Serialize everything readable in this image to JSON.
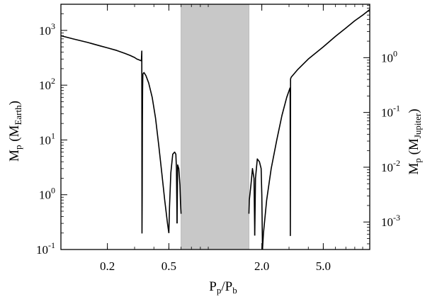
{
  "chart_data": {
    "type": "line",
    "xlabel": {
      "main": "P",
      "sub1": "p",
      "slash": "/P",
      "sub2": "b"
    },
    "ylabel_left": {
      "main": "M",
      "sub": "p",
      "paren_open": " (M",
      "unit_sub": "Earth",
      "paren_close": ")"
    },
    "ylabel_right": {
      "main": "M",
      "sub": "p",
      "paren_open": " (M",
      "unit_sub": "Jupiter",
      "paren_close": ")"
    },
    "x_scale": "log",
    "xlim": [
      0.1,
      10
    ],
    "x_ticks": [
      {
        "value": 0.2,
        "label": "0.2"
      },
      {
        "value": 0.5,
        "label": "0.5"
      },
      {
        "value": 2.0,
        "label": "2.0"
      },
      {
        "value": 5.0,
        "label": "5.0"
      }
    ],
    "y_scale": "log",
    "ylim": [
      0.1,
      3000
    ],
    "y_ticks_left": [
      {
        "value": 0.1,
        "base": "10",
        "exp": "-1"
      },
      {
        "value": 1,
        "base": "10",
        "exp": "0"
      },
      {
        "value": 10,
        "base": "10",
        "exp": "1"
      },
      {
        "value": 100,
        "base": "10",
        "exp": "2"
      },
      {
        "value": 1000,
        "base": "10",
        "exp": "3"
      }
    ],
    "y_ticks_right": [
      {
        "value": 0.001,
        "base": "10",
        "exp": "-3"
      },
      {
        "value": 0.01,
        "base": "10",
        "exp": "-2"
      },
      {
        "value": 0.1,
        "base": "10",
        "exp": "-1"
      },
      {
        "value": 1,
        "base": "10",
        "exp": "0"
      }
    ],
    "earth_per_jupiter": 317.8,
    "shaded_region": {
      "x_start": 0.6,
      "x_end": 1.65,
      "color": "#c8c8c8"
    },
    "line_color": "#000000",
    "series": [
      {
        "x": [
          0.1,
          0.12,
          0.15,
          0.18,
          0.2,
          0.23,
          0.26,
          0.28,
          0.3,
          0.31,
          0.32,
          0.33,
          0.332
        ],
        "y": [
          800,
          700,
          600,
          520,
          480,
          430,
          380,
          350,
          320,
          300,
          290,
          280,
          280
        ]
      },
      {
        "x": [
          0.332,
          0.334,
          0.335,
          0.336,
          0.337,
          0.338,
          0.339,
          0.3395
        ],
        "y": [
          280,
          420,
          0.2,
          1,
          20,
          80,
          140,
          160
        ]
      },
      {
        "x": [
          0.3395,
          0.345,
          0.355,
          0.37,
          0.39,
          0.41,
          0.43,
          0.45,
          0.47,
          0.49,
          0.5
        ],
        "y": [
          160,
          170,
          150,
          110,
          60,
          25,
          8,
          2.5,
          0.8,
          0.3,
          0.2
        ]
      },
      {
        "x": [
          0.5,
          0.505,
          0.515,
          0.53,
          0.545,
          0.555,
          0.56,
          0.565
        ],
        "y": [
          0.2,
          0.6,
          2.5,
          5.5,
          6,
          5.5,
          3,
          0.3
        ]
      },
      {
        "x": [
          0.565,
          0.57,
          0.58,
          0.59,
          0.595,
          0.6
        ],
        "y": [
          0.3,
          3.5,
          3,
          1.5,
          0.7,
          0.45
        ]
      },
      {
        "x": [
          1.65,
          1.66,
          1.7,
          1.74,
          1.78,
          1.79,
          1.8
        ],
        "y": [
          0.45,
          0.8,
          1.5,
          3,
          2,
          0.6,
          0.18
        ]
      },
      {
        "x": [
          1.8,
          1.82,
          1.87,
          1.93,
          1.98,
          2.0,
          2.02
        ],
        "y": [
          0.18,
          2,
          4.5,
          4,
          3,
          1,
          0.1
        ]
      },
      {
        "x": [
          2.02,
          2.05,
          2.15,
          2.3,
          2.5,
          2.7,
          2.9,
          3.05
        ],
        "y": [
          0.1,
          0.2,
          0.8,
          3,
          10,
          28,
          60,
          90
        ]
      },
      {
        "x": [
          3.05,
          3.06,
          3.07,
          3.1,
          3.4,
          4,
          5,
          6,
          7,
          8,
          9,
          10
        ],
        "y": [
          90,
          0.18,
          130,
          140,
          190,
          300,
          500,
          780,
          1100,
          1500,
          1900,
          2400
        ]
      }
    ]
  }
}
